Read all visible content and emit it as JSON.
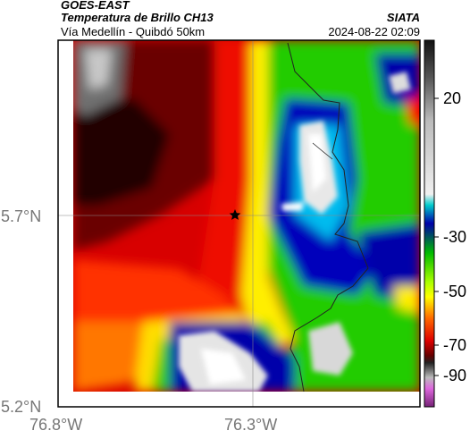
{
  "header": {
    "title": "GOES-EAST",
    "subtitle": "Temperatura de Brillo CH13",
    "location": "Vía Medellín - Quibdó 50km",
    "org": "SIATA",
    "datetime": "2024-08-22 02:09"
  },
  "axes": {
    "lat_ticks": [
      "5.7°N",
      "5.2°N"
    ],
    "lon_ticks": [
      "76.8°W",
      "76.3°W"
    ]
  },
  "colorbar": {
    "labels": [
      "20",
      "-30",
      "-50",
      "-70",
      "-90"
    ]
  },
  "colors": {
    "warm": "#d70000",
    "mid": "#ffff00",
    "cold_green": "#00cc00",
    "cold_blue": "#0000aa",
    "coldest": "#e0e0e0"
  }
}
